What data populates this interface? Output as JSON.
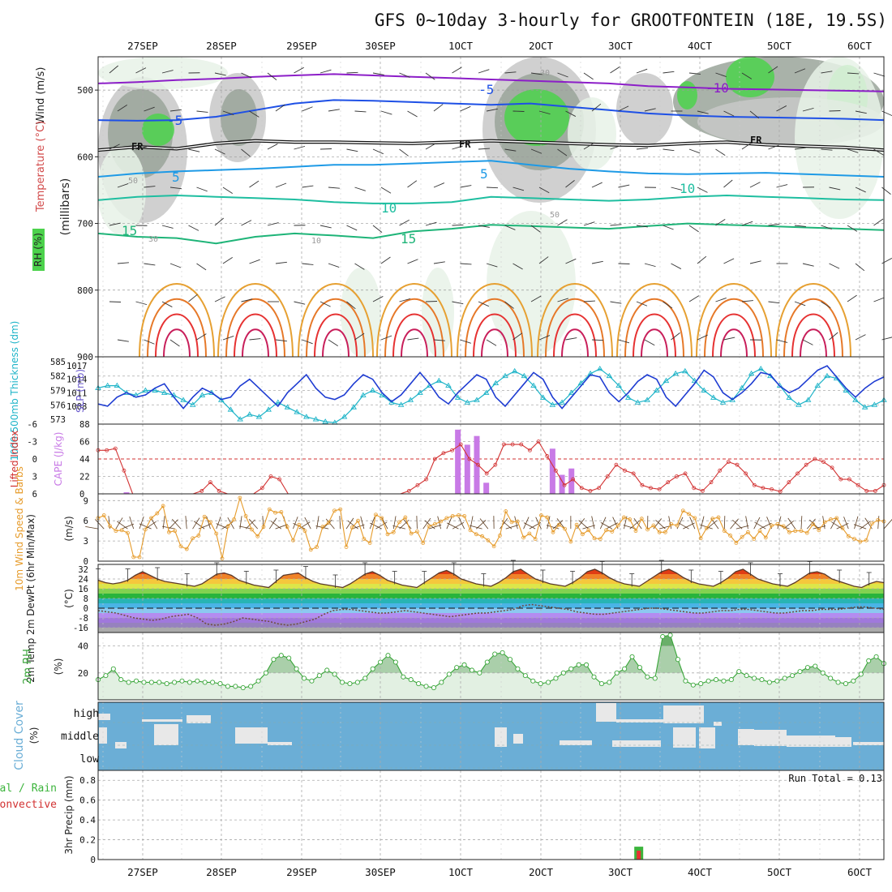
{
  "title": "GFS 0~10day 3-hourly for GROOTFONTEIN (18E, 19.5S)",
  "run_total": "Run Total = 0.13",
  "date_labels": [
    "27SEP",
    "28SEP",
    "29SEP",
    "30SEP",
    "1OCT",
    "2OCT",
    "3OCT",
    "4OCT",
    "5OCT",
    "6OCT"
  ],
  "colors": {
    "rh_light": "#e8f2e8",
    "rh_mid": "#c8c8c8",
    "rh_dark": "#9aa49a",
    "rh_green": "#4cd24c",
    "pressure": "#1e3cd2",
    "thickness": "#1eb4c8",
    "lifted": "#d23232",
    "cape": "#c87ae6",
    "wind": "#e69b2a",
    "rh2m": "#3aa63a",
    "cloud": "#6baed6",
    "cloud_gap": "#e8e8e8",
    "rain": "#3cb43c"
  },
  "chart_data": [
    {
      "panel": "upper_air",
      "type": "heatmap",
      "ylabel_left_1": "Wind (m/s)",
      "ylabel_left_2": "Temperature (°C)",
      "ylabel_left_3": "RH (%)",
      "ylabel_axis": "(millibars)",
      "ylim": [
        900,
        450
      ],
      "yticks": [
        "500",
        "600",
        "700",
        "800",
        "900"
      ],
      "contour_labels": [
        "-10",
        "-5",
        "-5",
        "FR",
        "FR",
        "FR",
        "5",
        "5",
        "10",
        "10",
        "15",
        "15",
        "10",
        "30",
        "50",
        "30",
        "50"
      ],
      "isotherm_levels_mb": {
        "-10": [
          490,
          488,
          485,
          483,
          480,
          478,
          476,
          478,
          480,
          482,
          484,
          486,
          488,
          490,
          494,
          496,
          498,
          499,
          500,
          501,
          502
        ],
        "-5": [
          545,
          546,
          545,
          540,
          530,
          520,
          515,
          516,
          518,
          520,
          522,
          520,
          525,
          530,
          535,
          538,
          540,
          541,
          542,
          543,
          545
        ],
        "FR": [
          590,
          585,
          588,
          580,
          576,
          578,
          578,
          579,
          580,
          578,
          576,
          578,
          580,
          582,
          583,
          580,
          578,
          582,
          584,
          586,
          590
        ],
        "5": [
          630,
          625,
          622,
          620,
          618,
          615,
          612,
          612,
          610,
          608,
          606,
          612,
          618,
          622,
          625,
          626,
          625,
          624,
          626,
          628,
          630
        ],
        "10": [
          665,
          660,
          658,
          660,
          662,
          664,
          668,
          670,
          670,
          668,
          660,
          662,
          664,
          666,
          664,
          660,
          658,
          660,
          662,
          664,
          665
        ],
        "15": [
          715,
          720,
          722,
          730,
          720,
          715,
          718,
          722,
          712,
          708,
          702,
          704,
          706,
          708,
          704,
          700,
          702,
          704,
          706,
          708,
          710
        ]
      }
    },
    {
      "panel": "thickness_slp",
      "type": "line",
      "ylabel_left": "1000-500mb Thickness (dm)",
      "ylabel_right": "SLP (mb)",
      "thickness_ticks": [
        "585",
        "582",
        "579",
        "576",
        "573"
      ],
      "slp_ticks": [
        "1017",
        "1014",
        "1011",
        "1008"
      ],
      "series": [
        {
          "name": "SLP (mb)",
          "values": [
            1008.5,
            1008,
            1010,
            1011,
            1010,
            1010.5,
            1012,
            1013,
            1010,
            1007.5,
            1010,
            1012,
            1011,
            1009.5,
            1010,
            1012.5,
            1014,
            1012,
            1010,
            1008,
            1011,
            1013,
            1015,
            1012,
            1010,
            1009.5,
            1010.5,
            1013,
            1015,
            1014,
            1011,
            1009,
            1010.5,
            1013,
            1015.5,
            1013,
            1010,
            1008.5,
            1011,
            1013,
            1015,
            1014,
            1010,
            1008,
            1010.5,
            1013,
            1015.5,
            1014,
            1010,
            1007.5,
            1010,
            1012.5,
            1015,
            1014.5,
            1011,
            1009,
            1011,
            1013.5,
            1015,
            1014,
            1010,
            1008,
            1010.5,
            1013,
            1016,
            1014.5,
            1011,
            1009.5,
            1011,
            1013,
            1015.5,
            1015,
            1012.5,
            1011,
            1012,
            1014,
            1016,
            1017,
            1014.5,
            1012,
            1010,
            1012,
            1013.5,
            1014.5
          ]
        },
        {
          "name": "Thickness (dm)",
          "values": [
            579.5,
            580,
            580,
            578.5,
            578,
            579,
            579,
            578.5,
            578,
            577,
            576,
            578,
            578.5,
            577,
            575,
            573,
            574,
            573.5,
            575,
            576.5,
            575.5,
            574.5,
            573.5,
            573,
            572.5,
            572.3,
            573.5,
            575.5,
            578,
            579,
            578,
            576.5,
            576,
            577,
            578.5,
            580,
            581,
            580,
            577.5,
            576.5,
            577,
            578.5,
            580.5,
            582,
            583,
            582,
            580,
            577.5,
            576,
            576.5,
            578.5,
            580.5,
            582.5,
            583.5,
            582,
            580,
            577.5,
            576.5,
            577,
            579,
            581,
            582.5,
            583,
            581,
            579,
            577.5,
            576.5,
            577,
            579.5,
            582.5,
            583.5,
            582,
            580,
            577.5,
            576,
            577,
            580,
            582,
            581.5,
            579,
            577,
            575.5,
            576,
            577
          ]
        }
      ]
    },
    {
      "panel": "lifted_cape",
      "type": "bar",
      "ylabel_left": "Lifted Index",
      "ylabel_right": "CAPE (J/kg)",
      "li_ticks": [
        "-6",
        "-3",
        "0",
        "3",
        "6"
      ],
      "cape_ticks": [
        "88",
        "66",
        "44",
        "22",
        "0"
      ],
      "series": [
        {
          "name": "CAPE (J/kg)",
          "values": [
            0,
            0,
            0,
            2,
            0,
            0,
            0,
            0,
            0,
            0,
            0,
            0,
            0,
            0,
            0,
            0,
            0,
            0,
            0,
            0,
            0,
            0,
            0,
            0,
            0,
            0,
            0,
            0,
            0,
            0,
            0,
            0,
            0,
            0,
            0,
            0,
            0,
            0,
            81,
            62,
            73,
            14,
            0,
            0,
            0,
            0,
            0,
            0,
            57,
            24,
            32,
            0,
            0,
            0,
            0,
            0,
            0,
            0,
            0,
            0,
            0,
            0,
            0,
            0,
            0,
            0,
            0,
            0,
            0,
            0,
            0,
            0,
            0,
            0,
            0,
            0,
            0,
            0,
            0,
            0,
            0,
            0,
            0,
            0
          ]
        },
        {
          "name": "Lifted Index",
          "values": [
            -1.5,
            -1.5,
            -1.8,
            2,
            6,
            7,
            7,
            7,
            6,
            6,
            6,
            6.5,
            5.5,
            4,
            5.5,
            7,
            7,
            7,
            7,
            5,
            3,
            3.5,
            7,
            7,
            7,
            7,
            7,
            7,
            7,
            7,
            7,
            7,
            7,
            7,
            7,
            6.5,
            5.5,
            4.5,
            3.5,
            0,
            -1,
            -1.5,
            -2.5,
            0,
            1,
            2.5,
            1,
            -2.5,
            -2.5,
            -2.5,
            -1.5,
            -3,
            -0.5,
            2,
            4.5,
            3.5,
            5,
            5.5,
            5,
            3,
            1,
            2,
            2.5,
            4.5,
            5,
            5.2,
            4,
            3,
            2.5,
            5,
            5.5,
            4,
            2,
            0.5,
            1,
            2.5,
            4.5,
            5,
            5.2,
            5.6,
            4,
            2.5,
            1,
            0,
            0.5,
            1.5,
            3.5,
            3.5,
            4.5,
            5.5,
            5.5,
            4.5
          ]
        }
      ]
    },
    {
      "panel": "wind_10m",
      "type": "line",
      "ylabel_left": "10m Wind Speed & Barbs",
      "ylabel_axis": "(m/s)",
      "yticks": [
        "9",
        "6",
        "3",
        "0"
      ],
      "series": [
        {
          "name": "10m Wind Speed (m/s)",
          "values": [
            6.4,
            6.8,
            5.2,
            4.5,
            4.6,
            4.2,
            0.6,
            0.6,
            4.7,
            6.4,
            7.1,
            8.2,
            4.3,
            4.5,
            2.2,
            1.8,
            3.4,
            3.8,
            6.6,
            5.8,
            4.1,
            0.4,
            5.2,
            6.2,
            9.4,
            6.7,
            4.7,
            3.7,
            5.1,
            7.7,
            7.2,
            7.3,
            5.1,
            3.1,
            5.4,
            4.5,
            1.7,
            2.1,
            5.1,
            5.7,
            7.5,
            7.7,
            2.1,
            5,
            6,
            3.3,
            2.7,
            6.9,
            6.4,
            4,
            4.3,
            5.8,
            6.5,
            4.1,
            4.4,
            2.7,
            5.2,
            5.5,
            5.9,
            6.4,
            6.7,
            6.8,
            6.7,
            4.6,
            4,
            3.7,
            3.1,
            2.2,
            3.8,
            7.4,
            5.8,
            5.9,
            3.5,
            4.1,
            3.3,
            6.8,
            6.5,
            4.3,
            5.4,
            4.8,
            2.9,
            5.4,
            4,
            4.6,
            3.4,
            3.3,
            4.6,
            4.4,
            5.3,
            6.5,
            6.2,
            4.5,
            6.3,
            4.7,
            5.3,
            4.3,
            4.3,
            5.5,
            5.3,
            7.5,
            7,
            6.4,
            3.4,
            4.9,
            6.3,
            6.5,
            4.5,
            3.8,
            2.7,
            3.6,
            4.3,
            3.3,
            4.5,
            3.5,
            5.3,
            5.5,
            5.2,
            4.3,
            4.5,
            4.5,
            4.2,
            5.5,
            4.6,
            5.8,
            6.2,
            6.4,
            4.9,
            3.7,
            3.3,
            2.9,
            3.1,
            5.6,
            6.1,
            5.9
          ]
        }
      ]
    },
    {
      "panel": "temp_2m",
      "type": "area",
      "ylabel_left": "2m Temp 2m DewPt (6hr Min/Max)",
      "ylabel_axis": "(°C)",
      "yticks": [
        "32",
        "24",
        "16",
        "8",
        "0",
        "-8",
        "-16"
      ],
      "series": [
        {
          "name": "2m Temp (°C)",
          "values": [
            23,
            21,
            20,
            21,
            23,
            27,
            30,
            27,
            24,
            22,
            21,
            20,
            19,
            18,
            20,
            24,
            28,
            29,
            27,
            23,
            21,
            19,
            18,
            17,
            22,
            27,
            28,
            29,
            25,
            22,
            20,
            19,
            18,
            17,
            20,
            24,
            28,
            30,
            27,
            23,
            21,
            19,
            18,
            17,
            21,
            25,
            29,
            31,
            28,
            24,
            22,
            20,
            19,
            18,
            21,
            25,
            30,
            32,
            28,
            24,
            22,
            20,
            19,
            18,
            21,
            25,
            30,
            32,
            29,
            25,
            22,
            20,
            19,
            18,
            22,
            26,
            30,
            32,
            29,
            25,
            22,
            20,
            19,
            18,
            21,
            25,
            30,
            32,
            28,
            24,
            22,
            20,
            19,
            18,
            21,
            25,
            29,
            30,
            28,
            24,
            22,
            20,
            18,
            17,
            20,
            22,
            21
          ]
        },
        {
          "name": "2m DewPt (°C)",
          "values": [
            -2,
            -3,
            -4,
            -6,
            -8,
            -9,
            -10,
            -9,
            -7,
            -6,
            -5,
            -8,
            -13,
            -14,
            -13,
            -11,
            -8,
            -9,
            -10,
            -11,
            -13,
            -14,
            -13,
            -11,
            -9,
            -5,
            -2,
            -1,
            -1,
            -2,
            -3,
            -4,
            -4,
            -3,
            -2,
            -3,
            -4,
            -5,
            -6,
            -7,
            -6,
            -5,
            -4,
            -4,
            -3,
            -2,
            -1,
            2,
            3,
            2,
            1,
            0,
            -1,
            -3,
            -4,
            -5,
            -5,
            -4,
            -3,
            -2,
            -1,
            0,
            0,
            -1,
            -2,
            -3,
            -4,
            -4,
            -3,
            -2,
            -2,
            -1,
            -1,
            -2,
            -3,
            -4,
            -4,
            -3,
            -2,
            -2,
            -1,
            -1,
            -1,
            0,
            1,
            1,
            0,
            -1
          ]
        }
      ]
    },
    {
      "panel": "rh_2m",
      "type": "area",
      "ylabel_left": "2m RH",
      "ylabel_axis": "(%)",
      "yticks": [
        "40",
        "20"
      ],
      "series": [
        {
          "name": "2m RH (%)",
          "values": [
            15,
            18,
            23,
            15,
            13,
            14,
            13,
            13,
            13,
            12,
            13,
            14,
            13,
            14,
            13,
            13,
            12,
            10,
            10,
            9,
            10,
            14,
            20,
            30,
            33,
            31,
            23,
            16,
            14,
            18,
            22,
            19,
            13,
            12,
            13,
            16,
            23,
            28,
            33,
            28,
            17,
            15,
            12,
            10,
            9,
            13,
            19,
            24,
            26,
            22,
            20,
            28,
            34,
            35,
            30,
            23,
            18,
            14,
            12,
            13,
            16,
            20,
            23,
            26,
            26,
            17,
            12,
            13,
            20,
            23,
            32,
            24,
            17,
            16,
            47,
            48,
            30,
            14,
            11,
            12,
            14,
            15,
            14,
            15,
            21,
            18,
            16,
            15,
            13,
            14,
            16,
            18,
            21,
            24,
            25,
            20,
            16,
            13,
            12,
            14,
            19,
            29,
            32,
            27
          ]
        }
      ]
    },
    {
      "panel": "cloud_cover",
      "type": "bar",
      "ylabel_left": "Cloud Cover",
      "ylabel_axis": "(%)",
      "levels": [
        "high",
        "middle",
        "low"
      ]
    },
    {
      "panel": "precip",
      "type": "bar",
      "ylabel_left_1": "Total / Rain",
      "ylabel_left_2": "Convective",
      "ylabel_axis": "3hr Precip (mm)",
      "yticks": [
        "0.8",
        "0.6",
        "0.4",
        "0.2",
        "0"
      ],
      "ylim": [
        0,
        0.9
      ],
      "series": [
        {
          "name": "Total",
          "index": 55,
          "value": 0.13
        },
        {
          "name": "Convective",
          "index": 55,
          "value": 0.09
        }
      ]
    }
  ]
}
